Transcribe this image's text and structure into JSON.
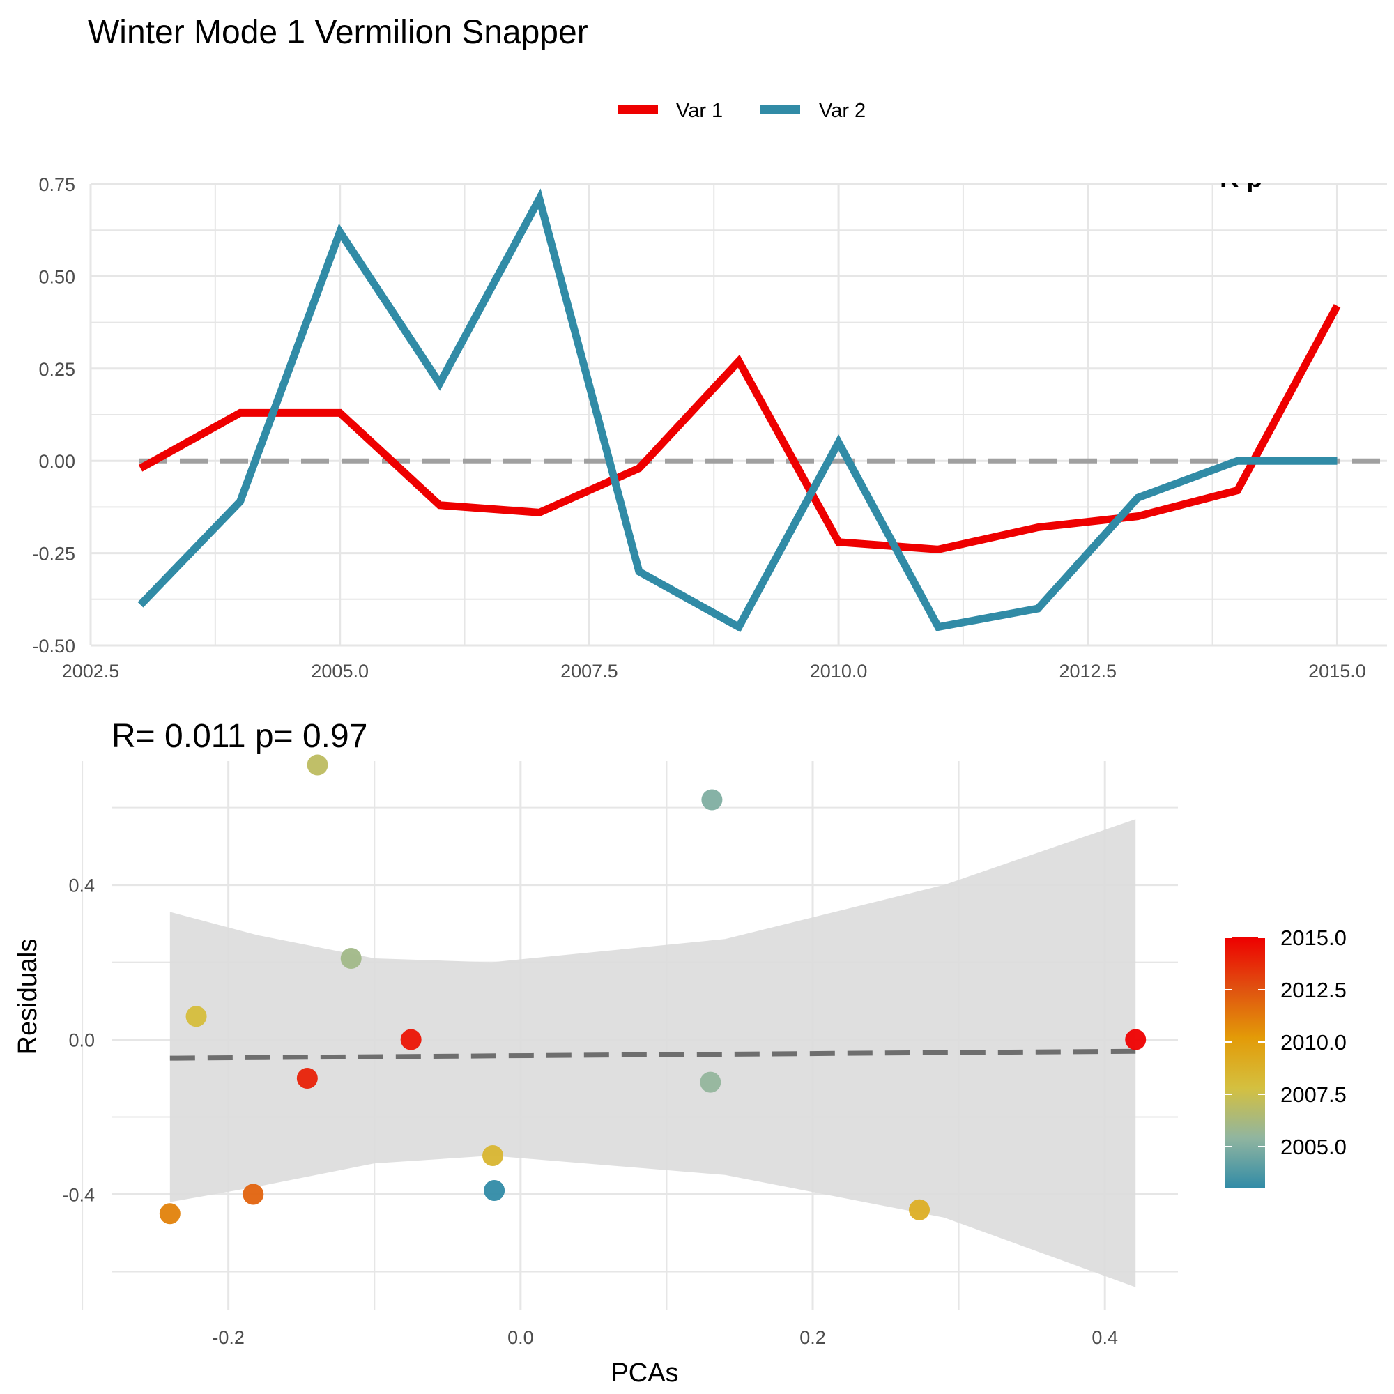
{
  "title": "Winter Mode 1 Vermilion Snapper",
  "colors": {
    "var1": "#ee0000",
    "var2": "#318ba6",
    "zero": "#a0a0a0",
    "grid": "#e6e6e6",
    "ribbon": "#dcdcdc",
    "fit": "#6e6e6e"
  },
  "chart_data": [
    {
      "type": "line",
      "title": "",
      "xlabel": "",
      "ylabel": "",
      "corner_text": "R  p",
      "xlim": [
        2002.5,
        2015.5
      ],
      "ylim": [
        -0.5,
        0.75
      ],
      "x_ticks": [
        "2002.5",
        "2005.0",
        "2007.5",
        "2010.0",
        "2012.5",
        "2015.0"
      ],
      "y_ticks": [
        "-0.50",
        "-0.25",
        "0.00",
        "0.25",
        "0.50",
        "0.75"
      ],
      "legend_position": "top",
      "reference_line": 0,
      "series": [
        {
          "name": "Var 1",
          "x": [
            2003,
            2004,
            2005,
            2006,
            2007,
            2008,
            2009,
            2010,
            2011,
            2012,
            2013,
            2014,
            2015
          ],
          "values": [
            -0.02,
            0.13,
            0.13,
            -0.12,
            -0.14,
            -0.02,
            0.27,
            -0.22,
            -0.24,
            -0.18,
            -0.15,
            -0.08,
            0.42
          ]
        },
        {
          "name": "Var 2",
          "x": [
            2003,
            2004,
            2005,
            2006,
            2007,
            2008,
            2009,
            2010,
            2011,
            2012,
            2013,
            2014,
            2015
          ],
          "values": [
            -0.39,
            -0.11,
            0.62,
            0.21,
            0.71,
            -0.3,
            -0.45,
            0.05,
            -0.45,
            -0.4,
            -0.1,
            0.0,
            0.0
          ]
        }
      ]
    },
    {
      "type": "scatter",
      "title": "R= 0.011  p= 0.97",
      "xlabel": "PCAs",
      "ylabel": "Residuals",
      "xlim": [
        -0.28,
        0.45
      ],
      "ylim": [
        -0.7,
        0.72
      ],
      "x_ticks": [
        "-0.2",
        "0.0",
        "0.2",
        "0.4"
      ],
      "y_ticks": [
        "-0.4",
        "0.0",
        "0.4"
      ],
      "points": [
        {
          "x": -0.24,
          "y": -0.45,
          "year": 2011
        },
        {
          "x": -0.222,
          "y": 0.06,
          "year": 2008
        },
        {
          "x": -0.183,
          "y": -0.4,
          "year": 2012
        },
        {
          "x": -0.146,
          "y": -0.1,
          "year": 2014
        },
        {
          "x": -0.139,
          "y": 0.71,
          "year": 2007
        },
        {
          "x": -0.116,
          "y": 0.21,
          "year": 2006
        },
        {
          "x": -0.075,
          "y": 0.0,
          "year": 2014.4
        },
        {
          "x": -0.019,
          "y": -0.3,
          "year": 2008.5
        },
        {
          "x": -0.018,
          "y": -0.39,
          "year": 2003
        },
        {
          "x": 0.131,
          "y": 0.62,
          "year": 2005
        },
        {
          "x": 0.13,
          "y": -0.11,
          "year": 2005.5
        },
        {
          "x": 0.273,
          "y": -0.44,
          "year": 2009
        },
        {
          "x": 0.421,
          "y": 0.0,
          "year": 2015
        }
      ],
      "fit": {
        "x": [
          -0.24,
          0.421
        ],
        "y": [
          -0.048,
          -0.03
        ]
      },
      "ribbon": {
        "x": [
          -0.24,
          -0.18,
          -0.1,
          -0.02,
          0.14,
          0.29,
          0.421
        ],
        "upper": [
          0.33,
          0.27,
          0.21,
          0.2,
          0.26,
          0.4,
          0.57
        ],
        "lower": [
          -0.42,
          -0.38,
          -0.32,
          -0.3,
          -0.35,
          -0.46,
          -0.64
        ]
      },
      "colorbar": {
        "ticks": [
          "2015.0",
          "2012.5",
          "2010.0",
          "2007.5",
          "2005.0"
        ],
        "tick_values": [
          2015,
          2012.5,
          2010,
          2007.5,
          2005
        ],
        "range": [
          2003,
          2015
        ],
        "colors": [
          "#318ba6",
          "#90b5a0",
          "#d4c040",
          "#e39b08",
          "#e05010",
          "#ee0000"
        ]
      }
    }
  ]
}
